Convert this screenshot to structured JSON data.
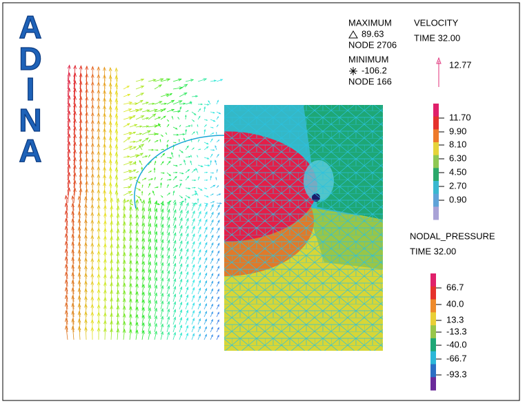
{
  "logo": {
    "letters": [
      "A",
      "D",
      "I",
      "N",
      "A"
    ]
  },
  "maximum": {
    "label": "MAXIMUM",
    "value": "89.63",
    "node": "NODE 2706"
  },
  "minimum": {
    "label": "MINIMUM",
    "value": "-106.2",
    "node": "NODE 166"
  },
  "velocity": {
    "title": "VELOCITY",
    "time": "TIME 32.00",
    "arrow_value": "12.77",
    "legend": [
      "11.70",
      "9.90",
      "8.10",
      "6.30",
      "4.50",
      "2.70",
      "0.90"
    ]
  },
  "pressure": {
    "title": "NODAL_PRESSURE",
    "time": "TIME 32.00",
    "legend": [
      "66.7",
      "40.0",
      "13.3",
      "-13.3",
      "-40.0",
      "-66.7",
      "-93.3"
    ]
  }
}
